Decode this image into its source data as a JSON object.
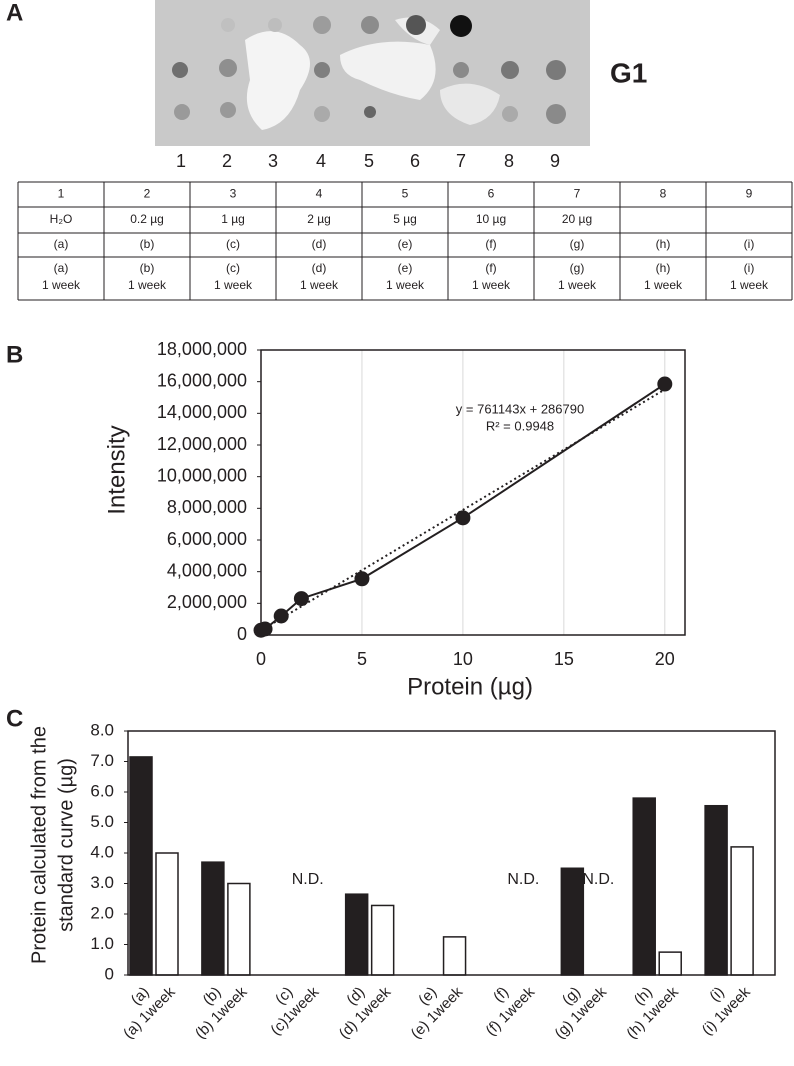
{
  "panels": {
    "a": "A",
    "b": "B",
    "c": "C"
  },
  "panel_a": {
    "blot_label": "G1",
    "lane_numbers": [
      "1",
      "2",
      "3",
      "4",
      "5",
      "6",
      "7",
      "8",
      "9"
    ],
    "table": {
      "rows": [
        [
          "1",
          "2",
          "3",
          "4",
          "5",
          "6",
          "7",
          "8",
          "9"
        ],
        [
          "H₂O",
          "0.2 µg",
          "1 µg",
          "2 µg",
          "5 µg",
          "10 µg",
          "20 µg",
          null,
          null
        ],
        [
          "(a)",
          "(b)",
          "(c)",
          "(d)",
          "(e)",
          "(f)",
          "(g)",
          "(h)",
          "(i)"
        ],
        [
          [
            "(a)",
            "1 week"
          ],
          [
            "(b)",
            "1 week"
          ],
          [
            "(c)",
            "1 week"
          ],
          [
            "(d)",
            "1 week"
          ],
          [
            "(e)",
            "1 week"
          ],
          [
            "(f)",
            "1 week"
          ],
          [
            "(g)",
            "1 week"
          ],
          [
            "(h)",
            "1 week"
          ],
          [
            "(i)",
            "1 week"
          ]
        ]
      ]
    }
  },
  "chart_data": [
    {
      "type": "line",
      "xlabel": "Protein (µg)",
      "ylabel": "Intensity",
      "x": [
        0,
        0.2,
        1,
        2,
        5,
        10,
        20
      ],
      "series": [
        {
          "color": "#231f20",
          "values": [
            300000,
            380000,
            1200000,
            2300000,
            3550000,
            7400000,
            15850000
          ]
        }
      ],
      "trendline": {
        "equation": "y = 761143x + 286790",
        "r_squared": "R² = 0.9948",
        "slope": 761143,
        "intercept": 286790
      },
      "xlim": [
        0,
        21
      ],
      "xticks": [
        0,
        5,
        10,
        15,
        20
      ],
      "ylim": [
        0,
        18000000
      ],
      "yticks": [
        0,
        {
          "value": 2000000,
          "label": "2,000,000"
        },
        {
          "value": 4000000,
          "label": "4,000,000"
        },
        {
          "value": 6000000,
          "label": "6,000,000"
        },
        {
          "value": 8000000,
          "label": "8,000,000"
        },
        {
          "value": 10000000,
          "label": "10,000,000"
        },
        {
          "value": 12000000,
          "label": "12,000,000"
        },
        {
          "value": 14000000,
          "label": "14,000,000"
        },
        {
          "value": 16000000,
          "label": "16,000,000"
        },
        {
          "value": 18000000,
          "label": "18,000,000"
        }
      ],
      "grid": "x"
    },
    {
      "type": "bar",
      "ylabel": [
        "Protein calculated from the",
        "standard curve (µg)"
      ],
      "series": [
        {
          "color": "#231f20",
          "categories": [
            "(a)",
            "(b)",
            "(c)",
            "(d)",
            "(e)",
            "(f)",
            "(g)",
            "(h)",
            "(i)"
          ],
          "values": [
            7.15,
            3.7,
            null,
            2.65,
            0,
            null,
            3.5,
            5.8,
            5.55
          ],
          "value_labels": [
            null,
            null,
            "N.D.",
            null,
            null,
            "N.D.",
            null,
            null,
            null
          ]
        },
        {
          "color": "#ffffff",
          "categories": [
            "(a) 1week",
            "(b) 1week",
            "(c)1week",
            "(d) 1week",
            "(e) 1week",
            "(f) 1week",
            "(g) 1week",
            "(h) 1week",
            "(i) 1week"
          ],
          "values": [
            4.0,
            3.0,
            null,
            2.28,
            1.25,
            null,
            null,
            0.75,
            4.2
          ],
          "value_labels": [
            null,
            null,
            null,
            null,
            null,
            null,
            "N.D.",
            null,
            null
          ]
        }
      ],
      "ylim": [
        0,
        8
      ],
      "yticks": [
        0,
        {
          "value": 1,
          "label": "1.0"
        },
        {
          "value": 2,
          "label": "2.0"
        },
        {
          "value": 3,
          "label": "3.0"
        },
        {
          "value": 4,
          "label": "4.0"
        },
        {
          "value": 5,
          "label": "5.0"
        },
        {
          "value": 6,
          "label": "6.0"
        },
        {
          "value": 7,
          "label": "7.0"
        },
        {
          "value": 8,
          "label": "8.0"
        }
      ]
    }
  ]
}
